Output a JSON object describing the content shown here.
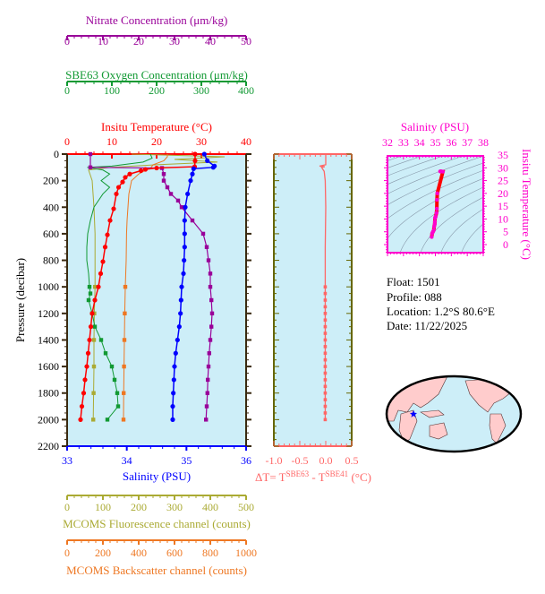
{
  "colors": {
    "temperature": "#ff0000",
    "salinity": "#0000ff",
    "nitrate": "#990099",
    "oxygen": "#119933",
    "fluorescence": "#aaaa33",
    "backscatter": "#ee7722",
    "delta": "#ff6666",
    "ts": "#ff00cc",
    "plot_bg": "#cdeef8",
    "frame": "#3a2a10",
    "land": "#ffcccc"
  },
  "info": {
    "float": "Float:  1501",
    "profile": "Profile:  088",
    "location": "Location:  1.2°S  80.6°E",
    "date": "Date:  11/22/2025"
  },
  "chart_data": [
    {
      "type": "line",
      "ylabel": "Pressure (decibar)",
      "ylim": [
        0,
        2200
      ],
      "yticks": [
        "0",
        "200",
        "400",
        "600",
        "800",
        "1000",
        "1200",
        "1400",
        "1600",
        "1800",
        "2000",
        "2200"
      ],
      "grid": false,
      "axes": {
        "nitrate": {
          "label": "Nitrate Concentration (μm/kg)",
          "range": [
            0,
            50
          ],
          "ticks": [
            "0",
            "10",
            "20",
            "30",
            "40",
            "50"
          ]
        },
        "oxygen": {
          "label": "SBE63 Oxygen Concentration (μm/kg)",
          "range": [
            0,
            400
          ],
          "ticks": [
            "0",
            "100",
            "200",
            "300",
            "400"
          ]
        },
        "temperature": {
          "label": "Insitu Temperature (°C)",
          "range": [
            0,
            40
          ],
          "ticks": [
            "0",
            "10",
            "20",
            "30",
            "40"
          ]
        },
        "salinity": {
          "label": "Salinity (PSU)",
          "range": [
            33,
            36
          ],
          "ticks": [
            "33",
            "34",
            "35",
            "36"
          ]
        },
        "fluorescence": {
          "label": "MCOMS Fluorescence channel (counts)",
          "range": [
            0,
            500
          ],
          "ticks": [
            "0",
            "100",
            "200",
            "300",
            "400",
            "500"
          ]
        },
        "backscatter": {
          "label": "MCOMS Backscatter channel (counts)",
          "range": [
            0,
            1000
          ],
          "ticks": [
            "0",
            "200",
            "400",
            "600",
            "800",
            "1000"
          ]
        }
      },
      "series": {
        "temperature": [
          [
            0,
            28.6
          ],
          [
            50,
            28.6
          ],
          [
            95,
            28.5
          ],
          [
            105,
            20
          ],
          [
            115,
            17.5
          ],
          [
            125,
            16.5
          ],
          [
            150,
            14
          ],
          [
            175,
            13
          ],
          [
            210,
            12.4
          ],
          [
            250,
            11.5
          ],
          [
            300,
            11
          ],
          [
            412,
            10.4
          ],
          [
            500,
            9.6
          ],
          [
            608,
            9
          ],
          [
            700,
            8.5
          ],
          [
            810,
            8
          ],
          [
            900,
            7.5
          ],
          [
            1000,
            7
          ],
          [
            1100,
            6.2
          ],
          [
            1200,
            5.6
          ],
          [
            1300,
            5.3
          ],
          [
            1400,
            5
          ],
          [
            1500,
            4.7
          ],
          [
            1600,
            4.4
          ],
          [
            1700,
            4
          ],
          [
            1800,
            3.7
          ],
          [
            1900,
            3.3
          ],
          [
            2000,
            3
          ]
        ],
        "salinity": [
          [
            0,
            35.3
          ],
          [
            50,
            35.35
          ],
          [
            90,
            35.47
          ],
          [
            100,
            35.45
          ],
          [
            110,
            35.12
          ],
          [
            150,
            35.1
          ],
          [
            200,
            35.07
          ],
          [
            300,
            35.02
          ],
          [
            400,
            34.98
          ],
          [
            500,
            34.97
          ],
          [
            600,
            34.97
          ],
          [
            700,
            34.97
          ],
          [
            800,
            34.96
          ],
          [
            900,
            34.95
          ],
          [
            1000,
            34.92
          ],
          [
            1100,
            34.91
          ],
          [
            1200,
            34.9
          ],
          [
            1300,
            34.88
          ],
          [
            1400,
            34.85
          ],
          [
            1500,
            34.82
          ],
          [
            1600,
            34.8
          ],
          [
            1700,
            34.79
          ],
          [
            1800,
            34.78
          ],
          [
            1900,
            34.77
          ],
          [
            2000,
            34.77
          ]
        ],
        "nitrate": [
          [
            0,
            6.5
          ],
          [
            100,
            6.5
          ],
          [
            105,
            26.5
          ],
          [
            150,
            27
          ],
          [
            200,
            27
          ],
          [
            250,
            28
          ],
          [
            300,
            29
          ],
          [
            350,
            31
          ],
          [
            400,
            32
          ],
          [
            500,
            35
          ],
          [
            600,
            38
          ],
          [
            700,
            39
          ],
          [
            800,
            39.5
          ],
          [
            900,
            40
          ],
          [
            1000,
            40
          ],
          [
            1100,
            40.3
          ],
          [
            1200,
            40.5
          ],
          [
            1300,
            40.3
          ],
          [
            1400,
            40
          ],
          [
            1500,
            39.7
          ],
          [
            1600,
            39.5
          ],
          [
            1700,
            39.3
          ],
          [
            1800,
            39.2
          ],
          [
            1900,
            39
          ],
          [
            2000,
            38.8
          ]
        ],
        "oxygen": [
          [
            0,
            186
          ],
          [
            30,
            190
          ],
          [
            60,
            170
          ],
          [
            90,
            100
          ],
          [
            100,
            45
          ],
          [
            120,
            80
          ],
          [
            150,
            95
          ],
          [
            200,
            76
          ],
          [
            250,
            95
          ],
          [
            300,
            80
          ],
          [
            350,
            70
          ],
          [
            400,
            60
          ],
          [
            500,
            52
          ],
          [
            600,
            46
          ],
          [
            700,
            44
          ],
          [
            800,
            44
          ],
          [
            900,
            48
          ],
          [
            1000,
            50
          ],
          [
            1050,
            52
          ],
          [
            1100,
            48
          ],
          [
            1200,
            56
          ],
          [
            1300,
            62
          ],
          [
            1400,
            76
          ],
          [
            1500,
            86
          ],
          [
            1600,
            100
          ],
          [
            1700,
            106
          ],
          [
            1800,
            112
          ],
          [
            1900,
            114
          ],
          [
            2000,
            90
          ]
        ],
        "fluorescence": [
          [
            0,
            180
          ],
          [
            20,
            440
          ],
          [
            40,
            300
          ],
          [
            60,
            420
          ],
          [
            80,
            250
          ],
          [
            100,
            120
          ],
          [
            120,
            60
          ],
          [
            200,
            70
          ],
          [
            400,
            75
          ],
          [
            600,
            78
          ],
          [
            800,
            78
          ],
          [
            1000,
            78
          ],
          [
            1200,
            76
          ],
          [
            1400,
            75
          ],
          [
            1600,
            75
          ],
          [
            1800,
            74
          ],
          [
            2000,
            73
          ]
        ],
        "backscatter": [
          [
            0,
            560
          ],
          [
            20,
            560
          ],
          [
            50,
            540
          ],
          [
            80,
            480
          ],
          [
            100,
            470
          ],
          [
            120,
            440
          ],
          [
            150,
            400
          ],
          [
            200,
            360
          ],
          [
            300,
            345
          ],
          [
            400,
            340
          ],
          [
            500,
            335
          ],
          [
            600,
            332
          ],
          [
            800,
            330
          ],
          [
            1000,
            325
          ],
          [
            1200,
            322
          ],
          [
            1400,
            320
          ],
          [
            1600,
            318
          ],
          [
            1800,
            316
          ],
          [
            2000,
            315
          ]
        ]
      }
    },
    {
      "type": "line",
      "xlabel": "ΔT= T^SBE63 - T^SBE41 (°C)",
      "xlabel_parts": {
        "prefix": "ΔT= T",
        "sup1": "SBE63",
        "mid": " - T",
        "sup2": "SBE41",
        "suffix": " (°C)"
      },
      "xlim": [
        -1.0,
        0.5
      ],
      "xticks": [
        "-1.0",
        "-0.5",
        "0.0",
        "0.5"
      ],
      "ylim": [
        0,
        2200
      ],
      "values": [
        [
          0,
          0
        ],
        [
          80,
          0
        ],
        [
          90,
          -0.12
        ],
        [
          95,
          -0.02
        ],
        [
          100,
          -0.08
        ],
        [
          130,
          -0.03
        ],
        [
          200,
          -0.01
        ],
        [
          400,
          0
        ],
        [
          700,
          -0.01
        ],
        [
          1000,
          -0.01
        ],
        [
          1500,
          -0.01
        ],
        [
          2000,
          -0.01
        ]
      ]
    },
    {
      "type": "scatter",
      "xlabel": "Salinity (PSU)",
      "ylabel": "Insitu Temperature (°C)",
      "xlim": [
        32,
        38
      ],
      "xticks": [
        "32",
        "33",
        "34",
        "35",
        "36",
        "37",
        "38"
      ],
      "yticks": [
        "0",
        "5",
        "10",
        "15",
        "20",
        "25",
        "30",
        "35"
      ],
      "points": [
        [
          35.3,
          28.6
        ],
        [
          35.35,
          28.6
        ],
        [
          35.47,
          28.5
        ],
        [
          35.12,
          20
        ],
        [
          35.1,
          17.5
        ],
        [
          35.09,
          14
        ],
        [
          35.07,
          12.4
        ],
        [
          35.02,
          11
        ],
        [
          34.98,
          10.4
        ],
        [
          34.97,
          9
        ],
        [
          34.96,
          8
        ],
        [
          34.92,
          7
        ],
        [
          34.9,
          5.6
        ],
        [
          34.85,
          5
        ],
        [
          34.8,
          4.4
        ],
        [
          34.77,
          3
        ]
      ]
    }
  ],
  "map": {
    "projection": "world, Pacific-centered",
    "marker_lat": -1.2,
    "marker_lon": 80.6,
    "marker_color": "#0000ff"
  }
}
